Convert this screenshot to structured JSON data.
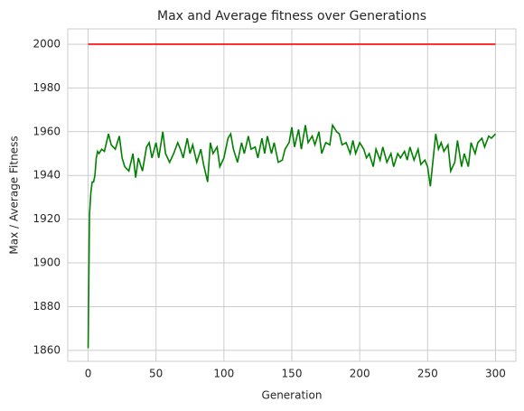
{
  "chart_data": {
    "type": "line",
    "title": "Max and Average fitness over Generations",
    "xlabel": "Generation",
    "ylabel": "Max / Average Fitness",
    "xlim": [
      -15,
      315
    ],
    "ylim": [
      1855,
      2007
    ],
    "xticks": [
      0,
      50,
      100,
      150,
      200,
      250,
      300
    ],
    "yticks": [
      1860,
      1880,
      1900,
      1920,
      1940,
      1960,
      1980,
      2000
    ],
    "grid": true,
    "series": [
      {
        "color": "#ff0000",
        "x": [
          0,
          300
        ],
        "values": [
          2000,
          2000
        ]
      },
      {
        "color": "#008000",
        "x": [
          0,
          1,
          2,
          3,
          4,
          5,
          6,
          7,
          8,
          10,
          12,
          15,
          17,
          20,
          23,
          25,
          27,
          30,
          33,
          35,
          37,
          40,
          43,
          45,
          47,
          50,
          52,
          55,
          57,
          60,
          63,
          66,
          68,
          70,
          73,
          75,
          77,
          80,
          83,
          85,
          88,
          90,
          92,
          95,
          97,
          100,
          103,
          105,
          107,
          110,
          113,
          115,
          118,
          120,
          123,
          125,
          128,
          130,
          132,
          135,
          137,
          140,
          143,
          145,
          148,
          150,
          152,
          155,
          157,
          160,
          162,
          165,
          167,
          170,
          172,
          175,
          178,
          180,
          183,
          185,
          187,
          190,
          193,
          195,
          197,
          200,
          203,
          205,
          207,
          210,
          212,
          215,
          217,
          220,
          223,
          225,
          228,
          230,
          233,
          235,
          237,
          240,
          243,
          245,
          248,
          250,
          252,
          254,
          256,
          258,
          260,
          262,
          265,
          267,
          270,
          272,
          275,
          277,
          280,
          282,
          285,
          287,
          290,
          292,
          295,
          297,
          300
        ],
        "values": [
          1861,
          1922,
          1932,
          1937,
          1937,
          1940,
          1948,
          1951,
          1950,
          1952,
          1951,
          1959,
          1954,
          1952,
          1958,
          1948,
          1944,
          1942,
          1950,
          1939,
          1948,
          1942,
          1953,
          1955,
          1948,
          1955,
          1948,
          1960,
          1950,
          1946,
          1950,
          1955,
          1952,
          1948,
          1957,
          1950,
          1954,
          1946,
          1952,
          1945,
          1937,
          1955,
          1950,
          1953,
          1944,
          1948,
          1957,
          1959,
          1952,
          1946,
          1955,
          1950,
          1958,
          1952,
          1953,
          1948,
          1957,
          1950,
          1958,
          1950,
          1955,
          1946,
          1947,
          1952,
          1955,
          1962,
          1953,
          1961,
          1952,
          1963,
          1955,
          1958,
          1954,
          1960,
          1950,
          1955,
          1954,
          1963,
          1960,
          1959,
          1954,
          1955,
          1950,
          1956,
          1950,
          1955,
          1952,
          1948,
          1950,
          1944,
          1952,
          1947,
          1953,
          1946,
          1950,
          1944,
          1950,
          1948,
          1951,
          1947,
          1953,
          1947,
          1952,
          1945,
          1947,
          1944,
          1935,
          1947,
          1959,
          1952,
          1955,
          1951,
          1954,
          1942,
          1946,
          1956,
          1944,
          1950,
          1944,
          1955,
          1950,
          1955,
          1957,
          1953,
          1958,
          1957,
          1959
        ]
      }
    ]
  }
}
